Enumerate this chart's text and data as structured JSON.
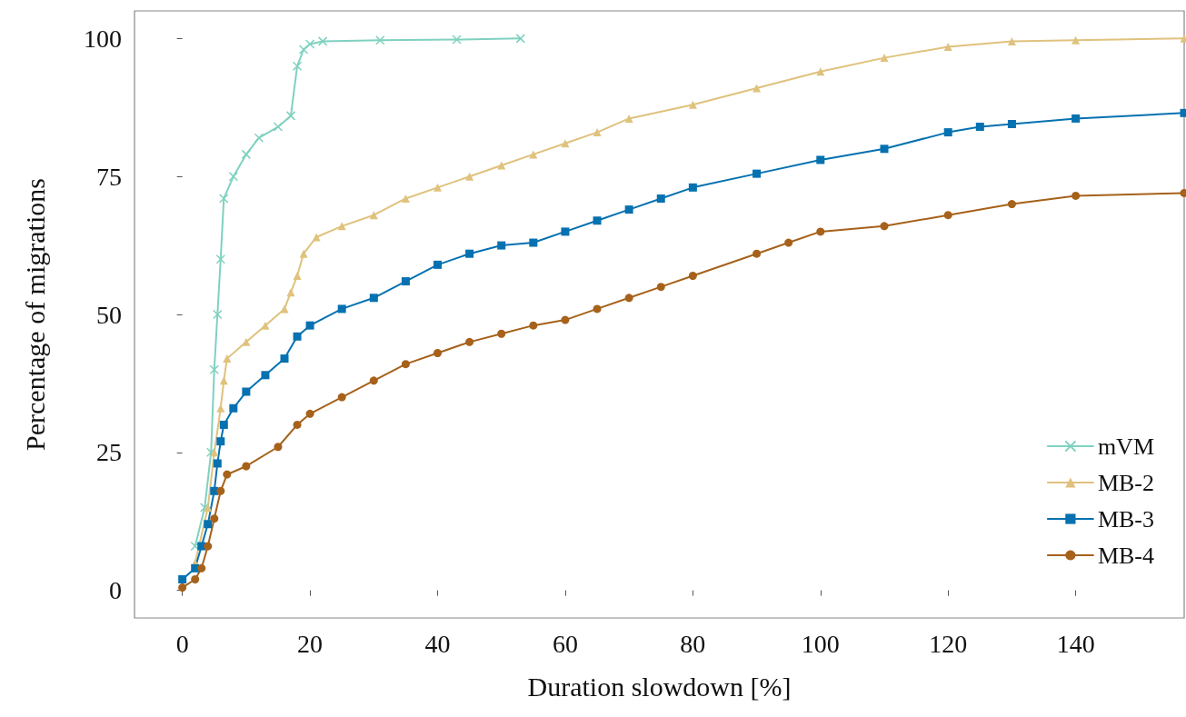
{
  "chart_data": {
    "type": "line",
    "xlabel": "Duration slowdown [%]",
    "ylabel": "Percentage of migrations",
    "xlim": [
      -7.5,
      157
    ],
    "ylim": [
      -5,
      105
    ],
    "xticks": [
      0,
      20,
      40,
      60,
      80,
      100,
      120,
      140
    ],
    "yticks": [
      0,
      25,
      50,
      75,
      100
    ],
    "grid": false,
    "legend": "bottom right",
    "line_style": "solid",
    "series": [
      {
        "name": "mVM",
        "color": "#7fd1c0",
        "marker": "cross",
        "x": [
          2,
          3.5,
          4.5,
          5,
          5.5,
          6,
          6.5,
          8,
          10,
          12,
          15,
          17,
          18,
          19,
          20,
          22,
          31,
          43,
          53
        ],
        "values": [
          8,
          15,
          25,
          40,
          50,
          60,
          71,
          75,
          79,
          82,
          84,
          86,
          95,
          98,
          99,
          99.5,
          99.7,
          99.8,
          100
        ]
      },
      {
        "name": "MB-2",
        "color": "#dfc27d",
        "marker": "triangle",
        "x": [
          2,
          4,
          5,
          6,
          6.5,
          7,
          10,
          13,
          16,
          17,
          18,
          19,
          21,
          25,
          30,
          35,
          40,
          45,
          50,
          55,
          60,
          65,
          70,
          80,
          90,
          100,
          110,
          120,
          130,
          140,
          157
        ],
        "values": [
          5,
          15,
          25,
          33,
          38,
          42,
          45,
          48,
          51,
          54,
          57,
          61,
          64,
          66,
          68,
          71,
          73,
          75,
          77,
          79,
          81,
          83,
          85.5,
          88,
          91,
          94,
          96.5,
          98.5,
          99.5,
          99.7,
          100
        ]
      },
      {
        "name": "MB-3",
        "color": "#0571b0",
        "marker": "square",
        "x": [
          0,
          2,
          3,
          4,
          5,
          5.5,
          6,
          6.5,
          8,
          10,
          13,
          16,
          18,
          20,
          25,
          30,
          35,
          40,
          45,
          50,
          55,
          60,
          65,
          70,
          75,
          80,
          90,
          100,
          110,
          120,
          125,
          130,
          140,
          157
        ],
        "values": [
          2,
          4,
          8,
          12,
          18,
          23,
          27,
          30,
          33,
          36,
          39,
          42,
          46,
          48,
          51,
          53,
          56,
          59,
          61,
          62.5,
          63,
          65,
          67,
          69,
          71,
          73,
          75.5,
          78,
          80,
          83,
          84,
          84.5,
          85.5,
          86.5
        ]
      },
      {
        "name": "MB-4",
        "color": "#a6611a",
        "marker": "circle",
        "x": [
          0,
          2,
          3,
          4,
          5,
          6,
          7,
          10,
          15,
          18,
          20,
          25,
          30,
          35,
          40,
          45,
          50,
          55,
          60,
          65,
          70,
          75,
          80,
          90,
          95,
          100,
          110,
          120,
          130,
          140,
          157
        ],
        "values": [
          0.5,
          2,
          4,
          8,
          13,
          18,
          21,
          22.5,
          26,
          30,
          32,
          35,
          38,
          41,
          43,
          45,
          46.5,
          48,
          49,
          51,
          53,
          55,
          57,
          61,
          63,
          65,
          66,
          68,
          70,
          71.5,
          72
        ]
      }
    ]
  }
}
